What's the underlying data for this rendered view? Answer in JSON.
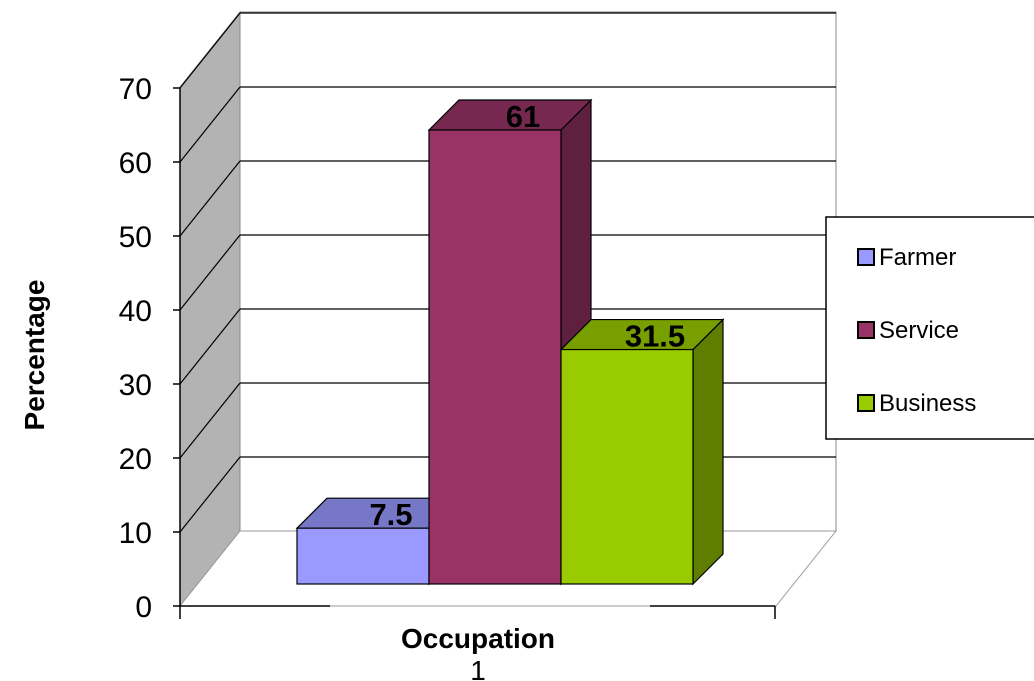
{
  "chart_data": {
    "type": "bar",
    "title": "",
    "xlabel": "Occupation",
    "ylabel": "Percentage",
    "categories": [
      "1"
    ],
    "series": [
      {
        "name": "Farmer",
        "values": [
          7.5
        ],
        "color": "#9999FF"
      },
      {
        "name": "Service",
        "values": [
          61
        ],
        "color": "#993366"
      },
      {
        "name": "Business",
        "values": [
          31.5
        ],
        "color": "#99CC00"
      }
    ],
    "ylim": [
      0,
      70
    ],
    "yticks": [
      0,
      10,
      20,
      30,
      40,
      50,
      60,
      70
    ],
    "grid": true,
    "three_d": true,
    "legend_position": "right"
  }
}
